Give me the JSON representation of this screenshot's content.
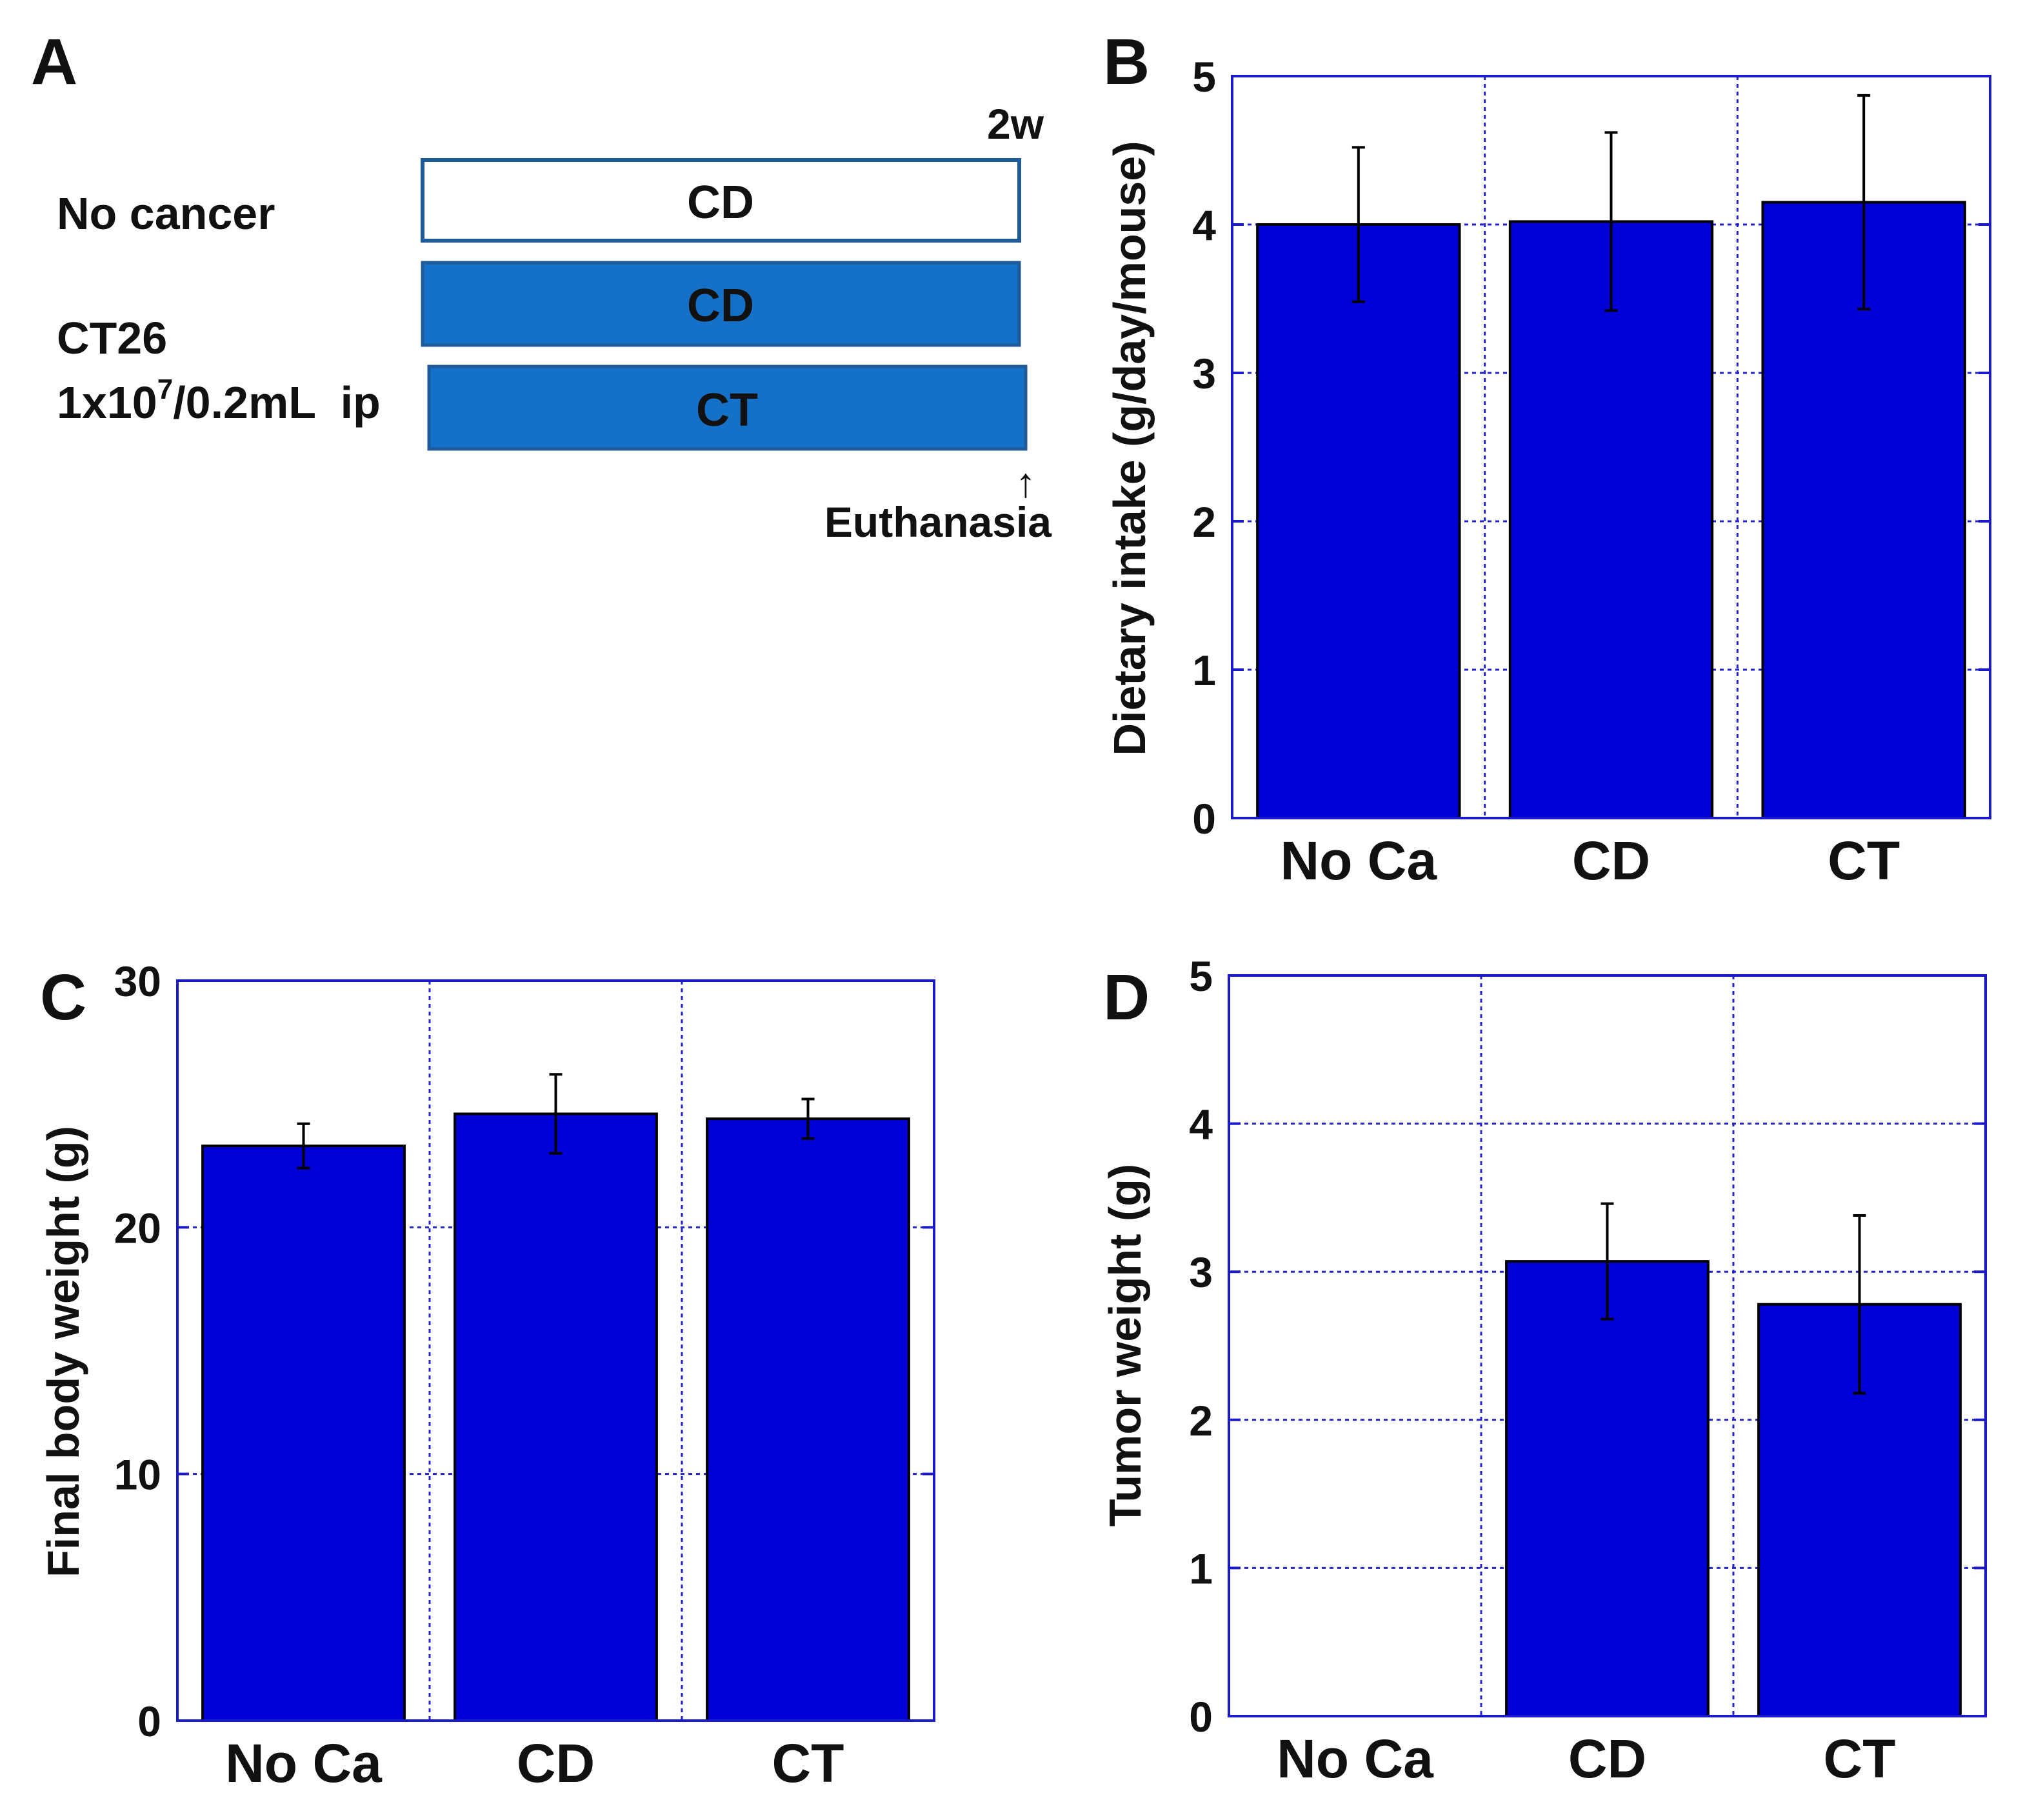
{
  "schematic": {
    "panel_label": "A",
    "duration": "2w",
    "groups": [
      {
        "label": "No cancer",
        "bar_label": "CD",
        "style": "outline"
      },
      {
        "bar_label": "CD",
        "style": "filled"
      },
      {
        "bar_label": "CT",
        "style": "filled"
      }
    ],
    "cancer_label_1": "CT26",
    "cancer_label_2a": "1x10",
    "cancer_label_sup": "7",
    "cancer_label_2b": "/0.2mL  ip",
    "event_arrow": "↑",
    "event_label": "Euthanasia",
    "colors": {
      "filled": "#1570c8",
      "outline": "#1f5a99"
    }
  },
  "colors": {
    "bar": "#0000d6",
    "axis": "#1a1acc",
    "grid": "#2222cc"
  },
  "chart_data": [
    {
      "panel_label": "B",
      "type": "bar",
      "categories": [
        "No Ca",
        "CD",
        "CT"
      ],
      "values": [
        4.0,
        4.02,
        4.15
      ],
      "errors": [
        0.52,
        0.6,
        0.72
      ],
      "ylabel": "Dietary intake (g/day/mouse)",
      "ylim": [
        0,
        5
      ],
      "yticks": [
        "0",
        "1",
        "2",
        "3",
        "4",
        "5"
      ],
      "grid": true
    },
    {
      "panel_label": "C",
      "type": "bar",
      "categories": [
        "No Ca",
        "CD",
        "CT"
      ],
      "values": [
        23.3,
        24.6,
        24.4
      ],
      "errors": [
        0.9,
        1.6,
        0.8
      ],
      "ylabel": "Final body weight (g)",
      "ylim": [
        0,
        30
      ],
      "yticks": [
        "0",
        "10",
        "20",
        "30"
      ],
      "grid": true
    },
    {
      "panel_label": "D",
      "type": "bar",
      "categories": [
        "No Ca",
        "CD",
        "CT"
      ],
      "values": [
        0,
        3.07,
        2.78
      ],
      "errors": [
        0,
        0.39,
        0.6
      ],
      "ylabel": "Tumor weight (g)",
      "ylim": [
        0,
        5
      ],
      "yticks": [
        "0",
        "1",
        "2",
        "3",
        "4",
        "5"
      ],
      "grid": true
    }
  ]
}
